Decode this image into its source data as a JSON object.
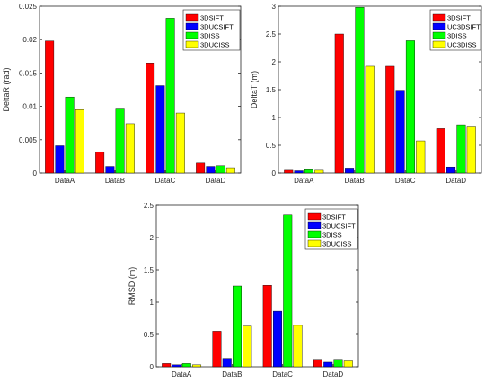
{
  "chart_data": [
    {
      "type": "bar",
      "title": "",
      "xlabel": "",
      "ylabel": "DeltaR (rad)",
      "ylim": [
        0,
        0.025
      ],
      "yticks": [
        "0",
        "0.005",
        "0.01",
        "0.015",
        "0.02",
        "0.025"
      ],
      "categories": [
        "DataA",
        "DataB",
        "DataC",
        "DataD"
      ],
      "legend_position": "top-right",
      "grid": false,
      "series": [
        {
          "name": "3DSIFT",
          "color": "#ff0000",
          "values": [
            0.0198,
            0.0032,
            0.0165,
            0.0015
          ]
        },
        {
          "name": "3DUCSIFT",
          "color": "#0000ff",
          "values": [
            0.0041,
            0.001,
            0.0131,
            0.001
          ]
        },
        {
          "name": "3DISS",
          "color": "#00ff00",
          "values": [
            0.0114,
            0.0096,
            0.0232,
            0.0011
          ]
        },
        {
          "name": "3DUCISS",
          "color": "#ffff00",
          "values": [
            0.0095,
            0.0074,
            0.009,
            0.0008
          ]
        }
      ]
    },
    {
      "type": "bar",
      "title": "",
      "xlabel": "",
      "ylabel": "DeltaT (m)",
      "ylim": [
        0,
        3
      ],
      "yticks": [
        "0",
        "0.5",
        "1",
        "1.5",
        "2",
        "2.5",
        "3"
      ],
      "categories": [
        "DataA",
        "DataB",
        "DataC",
        "DataD"
      ],
      "legend_position": "top-right",
      "grid": false,
      "series": [
        {
          "name": "3DSIFT",
          "color": "#ff0000",
          "values": [
            0.05,
            2.5,
            1.92,
            0.8
          ]
        },
        {
          "name": "UC3DSIFT",
          "color": "#0000ff",
          "values": [
            0.04,
            0.09,
            1.49,
            0.11
          ]
        },
        {
          "name": "3DISS",
          "color": "#00ff00",
          "values": [
            0.06,
            2.98,
            2.38,
            0.87
          ]
        },
        {
          "name": "UC3DISS",
          "color": "#ffff00",
          "values": [
            0.05,
            1.92,
            0.58,
            0.83
          ]
        }
      ]
    },
    {
      "type": "bar",
      "title": "",
      "xlabel": "",
      "ylabel": "RMSD (m)",
      "ylim": [
        0,
        2.5
      ],
      "yticks": [
        "0",
        "0.5",
        "1",
        "1.5",
        "2",
        "2.5"
      ],
      "categories": [
        "DataA",
        "DataB",
        "DataC",
        "DataD"
      ],
      "legend_position": "top-right",
      "grid": false,
      "series": [
        {
          "name": "3DSIFT",
          "color": "#ff0000",
          "values": [
            0.05,
            0.55,
            1.26,
            0.1
          ]
        },
        {
          "name": "3DUCSIFT",
          "color": "#0000ff",
          "values": [
            0.03,
            0.13,
            0.86,
            0.07
          ]
        },
        {
          "name": "3DISS",
          "color": "#00ff00",
          "values": [
            0.05,
            1.25,
            2.35,
            0.1
          ]
        },
        {
          "name": "3DUCISS",
          "color": "#ffff00",
          "values": [
            0.03,
            0.63,
            0.64,
            0.09
          ]
        }
      ]
    }
  ]
}
